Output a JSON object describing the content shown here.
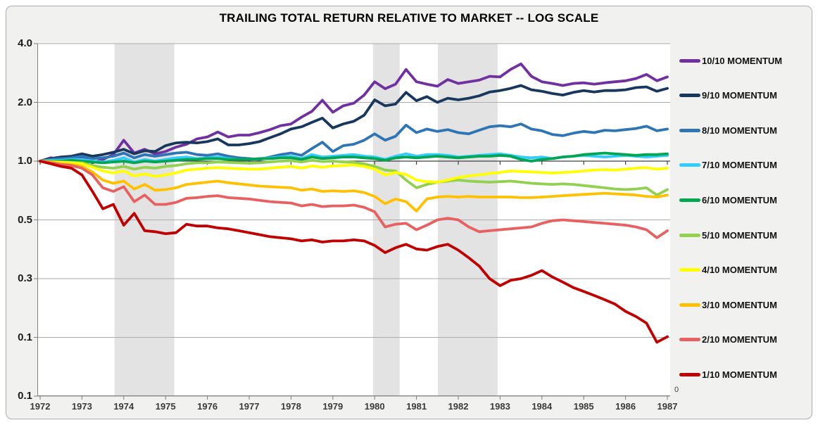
{
  "chart": {
    "right_axis_zero_label": "0",
    "colors": {
      "frame_background": "#F1F1EF",
      "plot_background": "#FFFFFF",
      "gridline": "#ABABAB",
      "recession_band": "#E3E3E3",
      "outer_axis": "#7F7F7F",
      "crossing_axis": "#404040",
      "title_text": "#000000"
    }
  },
  "chart_data": {
    "type": "line",
    "title": "TRAILING TOTAL RETURN RELATIVE TO MARKET -- LOG SCALE",
    "log_scale": true,
    "legend_position": "right",
    "grid": true,
    "x_start": 1972,
    "x_step": 0.25,
    "x_range": [
      1972,
      1987
    ],
    "x_tick_labels": [
      "1972",
      "1973",
      "1974",
      "1975",
      "1976",
      "1977",
      "1978",
      "1979",
      "1980",
      "1981",
      "1982",
      "1983",
      "1984",
      "1985",
      "1986",
      "1987"
    ],
    "y_tick_labels": [
      "4.0",
      "2.0",
      "1.0",
      "0.5",
      "0.3",
      "0.1",
      "0.1"
    ],
    "y_top_value": 4.0,
    "y_halvings_to_bottom": 6,
    "axis_crosses_at": 1.0,
    "recession_bands": [
      [
        1973.78,
        1975.21
      ],
      [
        1979.96,
        1980.6
      ],
      [
        1981.51,
        1982.94
      ]
    ],
    "series": [
      {
        "name": "10/10 MOMENTUM",
        "color": "#7030A0",
        "values": [
          1.0,
          1.04,
          1.02,
          0.99,
          1.05,
          0.98,
          1.02,
          1.08,
          1.28,
          1.1,
          1.15,
          1.09,
          1.12,
          1.18,
          1.22,
          1.3,
          1.33,
          1.41,
          1.33,
          1.36,
          1.36,
          1.4,
          1.45,
          1.52,
          1.55,
          1.68,
          1.8,
          2.05,
          1.78,
          1.92,
          1.98,
          2.18,
          2.55,
          2.35,
          2.48,
          2.95,
          2.55,
          2.48,
          2.42,
          2.62,
          2.5,
          2.55,
          2.6,
          2.72,
          2.7,
          2.95,
          3.15,
          2.72,
          2.55,
          2.5,
          2.44,
          2.5,
          2.52,
          2.48,
          2.52,
          2.55,
          2.58,
          2.65,
          2.78,
          2.58,
          2.7
        ]
      },
      {
        "name": "9/10 MOMENTUM",
        "color": "#17375D",
        "values": [
          1.0,
          1.03,
          1.05,
          1.06,
          1.09,
          1.06,
          1.08,
          1.11,
          1.15,
          1.09,
          1.13,
          1.12,
          1.2,
          1.24,
          1.25,
          1.24,
          1.26,
          1.3,
          1.21,
          1.21,
          1.23,
          1.26,
          1.32,
          1.38,
          1.46,
          1.5,
          1.58,
          1.66,
          1.48,
          1.55,
          1.6,
          1.72,
          2.06,
          1.92,
          1.96,
          2.25,
          2.04,
          2.14,
          2.0,
          2.1,
          2.06,
          2.1,
          2.16,
          2.26,
          2.3,
          2.36,
          2.44,
          2.32,
          2.28,
          2.22,
          2.18,
          2.25,
          2.3,
          2.26,
          2.3,
          2.3,
          2.32,
          2.38,
          2.4,
          2.28,
          2.36
        ]
      },
      {
        "name": "8/10 MOMENTUM",
        "color": "#2E75B6",
        "values": [
          1.0,
          1.02,
          1.03,
          1.04,
          1.06,
          1.03,
          1.04,
          1.06,
          1.1,
          1.04,
          1.08,
          1.06,
          1.08,
          1.1,
          1.11,
          1.08,
          1.07,
          1.09,
          1.06,
          1.04,
          1.03,
          1.02,
          1.05,
          1.08,
          1.1,
          1.07,
          1.16,
          1.25,
          1.12,
          1.2,
          1.22,
          1.28,
          1.38,
          1.28,
          1.34,
          1.53,
          1.4,
          1.46,
          1.42,
          1.45,
          1.4,
          1.38,
          1.44,
          1.5,
          1.52,
          1.5,
          1.55,
          1.46,
          1.43,
          1.37,
          1.35,
          1.39,
          1.42,
          1.4,
          1.44,
          1.43,
          1.45,
          1.47,
          1.51,
          1.43,
          1.46
        ]
      },
      {
        "name": "7/10 MOMENTUM",
        "color": "#33CCFF",
        "values": [
          1.0,
          1.01,
          1.01,
          1.02,
          1.02,
          1.0,
          0.99,
          1.01,
          1.04,
          0.99,
          1.02,
          1.0,
          1.02,
          1.04,
          1.05,
          1.03,
          1.04,
          1.05,
          1.03,
          1.02,
          1.02,
          1.03,
          1.04,
          1.05,
          1.06,
          1.03,
          1.08,
          1.05,
          1.06,
          1.07,
          1.08,
          1.06,
          1.05,
          1.02,
          1.06,
          1.09,
          1.06,
          1.08,
          1.08,
          1.07,
          1.05,
          1.06,
          1.07,
          1.08,
          1.09,
          1.07,
          1.05,
          1.04,
          1.05,
          1.03,
          1.05,
          1.06,
          1.07,
          1.06,
          1.05,
          1.06,
          1.07,
          1.06,
          1.05,
          1.06,
          1.07
        ]
      },
      {
        "name": "6/10 MOMENTUM",
        "color": "#00A651",
        "values": [
          1.0,
          1.0,
          1.0,
          1.01,
          1.0,
          0.99,
          0.98,
          0.99,
          1.0,
          0.98,
          1.0,
          0.99,
          1.0,
          1.01,
          1.02,
          1.02,
          1.03,
          1.03,
          1.02,
          1.02,
          1.02,
          1.03,
          1.03,
          1.04,
          1.04,
          1.02,
          1.05,
          1.03,
          1.04,
          1.05,
          1.05,
          1.04,
          1.03,
          1.01,
          1.04,
          1.05,
          1.04,
          1.05,
          1.06,
          1.05,
          1.04,
          1.05,
          1.06,
          1.06,
          1.07,
          1.06,
          1.02,
          1.0,
          1.02,
          1.03,
          1.05,
          1.06,
          1.08,
          1.09,
          1.1,
          1.09,
          1.08,
          1.07,
          1.08,
          1.08,
          1.09
        ]
      },
      {
        "name": "5/10 MOMENTUM",
        "color": "#92D050",
        "values": [
          1.0,
          0.995,
          0.99,
          0.985,
          0.98,
          0.95,
          0.93,
          0.92,
          0.94,
          0.91,
          0.93,
          0.92,
          0.94,
          0.95,
          0.97,
          0.98,
          0.98,
          0.99,
          0.985,
          0.98,
          0.975,
          0.98,
          0.99,
          1.0,
          1.005,
          0.99,
          1.01,
          0.995,
          1.0,
          0.99,
          0.985,
          0.97,
          0.94,
          0.9,
          0.89,
          0.8,
          0.73,
          0.76,
          0.78,
          0.79,
          0.8,
          0.79,
          0.785,
          0.78,
          0.785,
          0.79,
          0.78,
          0.77,
          0.765,
          0.76,
          0.765,
          0.76,
          0.75,
          0.74,
          0.73,
          0.72,
          0.715,
          0.72,
          0.73,
          0.67,
          0.715
        ]
      },
      {
        "name": "4/10 MOMENTUM",
        "color": "#FFFF00",
        "values": [
          1.0,
          0.99,
          0.985,
          0.98,
          0.97,
          0.93,
          0.89,
          0.87,
          0.89,
          0.84,
          0.86,
          0.835,
          0.85,
          0.87,
          0.9,
          0.91,
          0.92,
          0.925,
          0.92,
          0.915,
          0.91,
          0.91,
          0.92,
          0.93,
          0.94,
          0.92,
          0.945,
          0.93,
          0.945,
          0.95,
          0.955,
          0.94,
          0.91,
          0.85,
          0.875,
          0.855,
          0.8,
          0.785,
          0.78,
          0.8,
          0.825,
          0.84,
          0.85,
          0.865,
          0.875,
          0.89,
          0.885,
          0.88,
          0.875,
          0.87,
          0.875,
          0.88,
          0.89,
          0.9,
          0.905,
          0.9,
          0.91,
          0.92,
          0.925,
          0.91,
          0.92
        ]
      },
      {
        "name": "3/10 MOMENTUM",
        "color": "#FFC000",
        "values": [
          1.0,
          0.99,
          0.97,
          0.96,
          0.94,
          0.88,
          0.8,
          0.77,
          0.79,
          0.72,
          0.76,
          0.71,
          0.715,
          0.73,
          0.76,
          0.77,
          0.78,
          0.79,
          0.775,
          0.765,
          0.755,
          0.745,
          0.74,
          0.735,
          0.73,
          0.71,
          0.72,
          0.7,
          0.705,
          0.7,
          0.705,
          0.69,
          0.66,
          0.605,
          0.64,
          0.62,
          0.555,
          0.64,
          0.655,
          0.66,
          0.655,
          0.66,
          0.655,
          0.655,
          0.655,
          0.655,
          0.65,
          0.65,
          0.655,
          0.66,
          0.665,
          0.67,
          0.675,
          0.68,
          0.685,
          0.68,
          0.675,
          0.67,
          0.66,
          0.655,
          0.67
        ]
      },
      {
        "name": "2/10 MOMENTUM",
        "color": "#E86060",
        "values": [
          1.0,
          0.98,
          0.96,
          0.95,
          0.92,
          0.85,
          0.73,
          0.7,
          0.74,
          0.62,
          0.67,
          0.6,
          0.6,
          0.615,
          0.645,
          0.65,
          0.66,
          0.665,
          0.65,
          0.645,
          0.64,
          0.63,
          0.62,
          0.615,
          0.61,
          0.59,
          0.6,
          0.585,
          0.59,
          0.59,
          0.595,
          0.58,
          0.55,
          0.46,
          0.475,
          0.48,
          0.445,
          0.47,
          0.5,
          0.51,
          0.5,
          0.46,
          0.435,
          0.44,
          0.445,
          0.45,
          0.455,
          0.46,
          0.48,
          0.495,
          0.5,
          0.495,
          0.49,
          0.485,
          0.48,
          0.475,
          0.47,
          0.46,
          0.445,
          0.405,
          0.44
        ]
      },
      {
        "name": "1/10 MOMENTUM",
        "color": "#C00000",
        "values": [
          1.0,
          0.97,
          0.94,
          0.92,
          0.85,
          0.7,
          0.57,
          0.6,
          0.47,
          0.54,
          0.44,
          0.435,
          0.425,
          0.43,
          0.475,
          0.465,
          0.465,
          0.455,
          0.45,
          0.44,
          0.43,
          0.42,
          0.41,
          0.405,
          0.4,
          0.39,
          0.395,
          0.385,
          0.39,
          0.39,
          0.395,
          0.39,
          0.37,
          0.34,
          0.36,
          0.375,
          0.355,
          0.35,
          0.365,
          0.375,
          0.35,
          0.32,
          0.29,
          0.25,
          0.23,
          0.245,
          0.25,
          0.26,
          0.275,
          0.255,
          0.24,
          0.225,
          0.215,
          0.205,
          0.195,
          0.185,
          0.17,
          0.16,
          0.148,
          0.118,
          0.126
        ]
      }
    ]
  }
}
